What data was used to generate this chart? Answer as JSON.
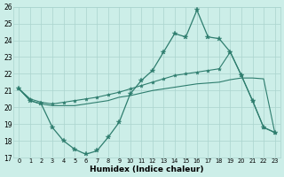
{
  "xlabel": "Humidex (Indice chaleur)",
  "x_values": [
    0,
    1,
    2,
    3,
    4,
    5,
    6,
    7,
    8,
    9,
    10,
    11,
    12,
    13,
    14,
    15,
    16,
    17,
    18,
    19,
    20,
    21,
    22,
    23
  ],
  "line_main": [
    21.1,
    20.4,
    20.2,
    18.8,
    18.0,
    17.5,
    17.2,
    17.4,
    18.2,
    19.1,
    20.8,
    21.6,
    22.2,
    23.3,
    24.4,
    24.2,
    25.8,
    24.2,
    24.1,
    23.3,
    21.9,
    20.4,
    18.8,
    18.5
  ],
  "line_upper": [
    21.1,
    20.5,
    20.3,
    20.2,
    20.3,
    20.4,
    20.5,
    20.6,
    20.75,
    20.9,
    21.1,
    21.3,
    21.5,
    21.7,
    21.9,
    22.0,
    22.1,
    22.2,
    22.3,
    23.3,
    21.9,
    20.4,
    18.8,
    18.5
  ],
  "line_lower": [
    21.1,
    20.4,
    20.2,
    20.1,
    20.1,
    20.1,
    20.2,
    20.3,
    20.4,
    20.6,
    20.7,
    20.85,
    21.0,
    21.1,
    21.2,
    21.3,
    21.4,
    21.45,
    21.5,
    21.65,
    21.75,
    21.75,
    21.7,
    18.5
  ],
  "ylim_min": 17,
  "ylim_max": 26,
  "yticks": [
    17,
    18,
    19,
    20,
    21,
    22,
    23,
    24,
    25,
    26
  ],
  "line_color": "#2e7d6e",
  "bg_color": "#cceee8",
  "grid_color": "#aad4ce"
}
